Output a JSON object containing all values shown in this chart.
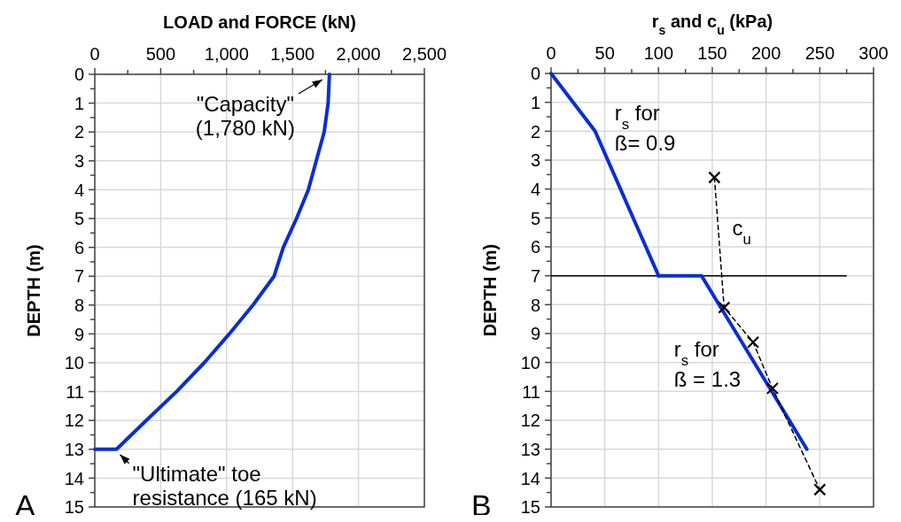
{
  "chart_data": [
    {
      "type": "line",
      "xlabel": "LOAD and FORCE  (kN)",
      "ylabel": "DEPTH  (m)",
      "xlim": [
        0,
        2500
      ],
      "xticks": [
        0,
        {
          "value": 250,
          "label": null
        },
        500,
        {
          "value": 750,
          "label": null
        },
        {
          "value": 1000,
          "label": "1,000"
        },
        {
          "value": 1250,
          "label": null
        },
        {
          "value": 1500,
          "label": "1,500"
        },
        {
          "value": 1750,
          "label": null
        },
        {
          "value": 2000,
          "label": "2,000"
        },
        {
          "value": 2250,
          "label": null
        },
        {
          "value": 2500,
          "label": "2,500"
        }
      ],
      "ylim": [
        15,
        0
      ],
      "yticks": [
        0,
        {
          "value": 0.5,
          "label": null
        },
        1,
        {
          "value": 1.5,
          "label": null
        },
        2,
        {
          "value": 2.5,
          "label": null
        },
        3,
        {
          "value": 3.5,
          "label": null
        },
        4,
        {
          "value": 4.5,
          "label": null
        },
        5,
        {
          "value": 5.5,
          "label": null
        },
        6,
        {
          "value": 6.5,
          "label": null
        },
        7,
        {
          "value": 7.5,
          "label": null
        },
        8,
        {
          "value": 8.5,
          "label": null
        },
        9,
        {
          "value": 9.5,
          "label": null
        },
        10,
        {
          "value": 10.5,
          "label": null
        },
        11,
        {
          "value": 11.5,
          "label": null
        },
        12,
        {
          "value": 12.5,
          "label": null
        },
        13,
        {
          "value": 13.5,
          "label": null
        },
        14,
        {
          "value": 14.5,
          "label": null
        },
        15
      ],
      "grid": true,
      "series": [
        {
          "color": "#0a2fd0",
          "marker": "none",
          "line_style": "solid",
          "x": [
            1780,
            1770,
            1740,
            1680,
            1620,
            1530,
            1430,
            1360,
            1200,
            1020,
            830,
            620,
            390,
            165,
            0
          ],
          "values": [
            0,
            1,
            2,
            3,
            4,
            5,
            6,
            7,
            8,
            9,
            10,
            11,
            12,
            13,
            13
          ]
        }
      ],
      "annotations": [
        {
          "text": "\"Capacity\"\n(1,780 kN)",
          "x": 1780,
          "y": 0
        },
        {
          "text": "\"Ultimate\"  toe\nresistance (165 kN)",
          "x": 165,
          "y": 13
        },
        "A"
      ]
    },
    {
      "type": "line",
      "xlabel": "r$_{s}$ and c$_{u}$  (kPa)",
      "ylabel": "DEPTH  (m)",
      "xlim": [
        0,
        300
      ],
      "xticks": [
        0,
        {
          "value": 25,
          "label": null
        },
        50,
        {
          "value": 75,
          "label": null
        },
        100,
        {
          "value": 125,
          "label": null
        },
        150,
        {
          "value": 175,
          "label": null
        },
        200,
        {
          "value": 225,
          "label": null
        },
        250,
        {
          "value": 275,
          "label": null
        },
        300
      ],
      "ylim": [
        15,
        0
      ],
      "yticks": [
        0,
        {
          "value": 0.5,
          "label": null
        },
        1,
        {
          "value": 1.5,
          "label": null
        },
        2,
        {
          "value": 2.5,
          "label": null
        },
        3,
        {
          "value": 3.5,
          "label": null
        },
        4,
        {
          "value": 4.5,
          "label": null
        },
        5,
        {
          "value": 5.5,
          "label": null
        },
        6,
        {
          "value": 6.5,
          "label": null
        },
        7,
        {
          "value": 7.5,
          "label": null
        },
        8,
        {
          "value": 8.5,
          "label": null
        },
        9,
        {
          "value": 9.5,
          "label": null
        },
        10,
        {
          "value": 10.5,
          "label": null
        },
        11,
        {
          "value": 11.5,
          "label": null
        },
        12,
        {
          "value": 12.5,
          "label": null
        },
        13,
        {
          "value": 13.5,
          "label": null
        },
        14,
        {
          "value": 14.5,
          "label": null
        },
        15
      ],
      "grid": true,
      "ref_lines": [
        {
          "axis": "y",
          "value": 7,
          "color": "#000000"
        }
      ],
      "series": [
        {
          "name": "r$_{s}$ for\nß= 0.9",
          "color": "#0a2fd0",
          "marker": "none",
          "line_style": "solid",
          "x": [
            0,
            41,
            100
          ],
          "values": [
            0,
            2,
            7
          ]
        },
        {
          "name": "r$_{s}$ for\nß = 1.3",
          "color": "#0a2fd0",
          "marker": "none",
          "line_style": "solid",
          "x": [
            100,
            140,
            238
          ],
          "values": [
            7,
            7,
            13
          ]
        },
        {
          "name": "c$_{u}$",
          "color": "#000000",
          "marker": "cross",
          "line_style": "dashed",
          "x": [
            152,
            161,
            188,
            206,
            250
          ],
          "values": [
            3.6,
            8.1,
            9.3,
            10.9,
            14.4
          ]
        }
      ],
      "annotations": [
        "B"
      ]
    }
  ]
}
